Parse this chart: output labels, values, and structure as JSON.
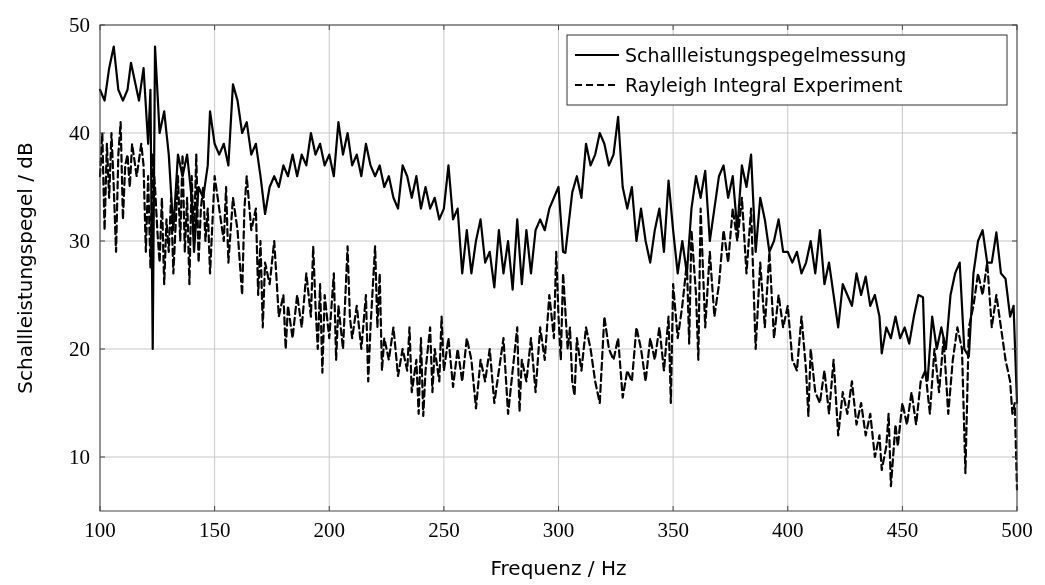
{
  "chart_data": {
    "type": "line",
    "xlabel": "Frequenz / Hz",
    "ylabel": "Schallleistungspegel / dB",
    "xlim": [
      100,
      500
    ],
    "xticks": [
      100,
      150,
      200,
      250,
      300,
      350,
      400,
      450,
      500
    ],
    "ylim": [
      5,
      50
    ],
    "yticks": [
      10,
      20,
      30,
      40,
      50
    ],
    "grid": true,
    "legend": "top right",
    "series": [
      {
        "name": "Schallleistungspegelmessung",
        "color": "#000000",
        "line_style": "solid",
        "x": [
          100,
          102,
          104,
          106,
          108,
          110,
          112,
          113.5,
          115,
          117,
          119,
          121,
          122,
          123,
          124,
          126,
          128,
          130,
          132,
          134,
          136,
          138,
          140,
          141,
          143,
          145,
          147,
          148,
          150,
          152,
          154,
          156,
          158,
          160,
          162,
          164,
          166,
          168,
          170,
          172,
          174,
          176,
          178,
          180,
          182,
          184,
          186,
          188,
          190,
          192,
          194,
          196,
          198,
          200,
          202,
          204,
          206,
          208,
          210,
          212,
          214,
          216,
          218,
          220,
          222,
          224,
          226,
          228,
          230,
          232,
          234,
          236,
          238,
          240,
          242,
          244,
          246,
          248,
          250,
          252,
          254,
          256,
          258,
          260,
          262,
          264,
          266,
          268,
          270,
          272,
          274,
          276,
          278,
          280,
          282,
          284,
          286,
          288,
          290,
          292,
          294,
          296,
          298,
          300,
          302,
          303,
          306,
          308,
          310,
          312,
          314,
          316,
          318,
          320,
          322,
          324,
          326,
          328,
          330,
          332,
          334,
          336,
          338,
          340,
          342,
          344,
          346,
          348,
          350,
          352,
          354,
          356,
          358,
          360,
          362,
          364,
          366,
          368,
          370,
          372,
          374,
          376,
          378,
          380,
          382,
          384,
          386,
          388,
          390,
          392,
          394,
          396,
          398,
          400,
          402,
          404,
          406,
          408,
          410,
          412,
          414,
          416,
          418,
          420,
          422,
          424,
          426,
          428,
          430,
          432,
          434,
          436,
          438,
          440,
          441,
          443,
          445,
          447,
          449,
          451,
          453,
          455,
          457,
          459,
          460,
          461,
          463,
          465,
          467,
          469,
          471,
          473,
          475,
          477,
          479,
          481,
          483,
          485,
          487,
          489,
          491,
          493,
          495,
          497,
          498.5,
          500
        ],
        "values": [
          44,
          43,
          46,
          48,
          44,
          43,
          44,
          46.5,
          45,
          43,
          46,
          39,
          44,
          20,
          48,
          40,
          42,
          38,
          31,
          38,
          36,
          38,
          34,
          29,
          35,
          34,
          37,
          42,
          39,
          38,
          39,
          37,
          44.5,
          43,
          40,
          41,
          38,
          39,
          36,
          32.5,
          35,
          36,
          35,
          37,
          36,
          38,
          36,
          38,
          37,
          40,
          38,
          39,
          37,
          38,
          36,
          41,
          38,
          40,
          37,
          38,
          36,
          39,
          37,
          36,
          37,
          35,
          36,
          34,
          33,
          37,
          36,
          34,
          36,
          33,
          35,
          33,
          34,
          32,
          33,
          37,
          32,
          33,
          27,
          31,
          27,
          30,
          32,
          28,
          29,
          25.7,
          31,
          27,
          30,
          25.5,
          32,
          26,
          31,
          27,
          31,
          32,
          31,
          33,
          34,
          35,
          29,
          28.9,
          34.5,
          36,
          34,
          39,
          37,
          38,
          40,
          39,
          37,
          38,
          41.5,
          35,
          33,
          35,
          30,
          33,
          30,
          28,
          31,
          33,
          29,
          35.6,
          31,
          27,
          30,
          27,
          33,
          36,
          34,
          36.5,
          30,
          33,
          36,
          37,
          34,
          36,
          31,
          37,
          35,
          38,
          29,
          34,
          32,
          29,
          30,
          32,
          29,
          29,
          28,
          29,
          27,
          28,
          30,
          27,
          31,
          26,
          28,
          25,
          22,
          26,
          25,
          24,
          27,
          25,
          26.7,
          24,
          25,
          23,
          19.6,
          22,
          21,
          23,
          21,
          22,
          20.5,
          23,
          25,
          24.8,
          18,
          17.1,
          23,
          20,
          22,
          20,
          25,
          27,
          28,
          20,
          19.3,
          27,
          30,
          31,
          28,
          28,
          30.8,
          27,
          26.5,
          23,
          24,
          15
        ]
      },
      {
        "name": "Rayleigh Integral Experiment",
        "color": "#000000",
        "line_style": "dashed",
        "x": [
          100,
          101,
          102,
          103,
          104,
          105,
          106,
          107,
          108,
          109,
          110,
          111,
          112,
          113,
          114,
          116,
          118,
          119,
          120,
          121,
          122,
          123,
          124,
          125,
          126,
          127,
          128,
          129,
          130,
          131,
          132,
          134,
          135,
          136,
          137,
          138,
          139,
          140,
          141,
          142,
          143,
          144,
          145,
          146,
          147,
          148,
          150,
          152,
          154,
          155,
          156,
          158,
          160,
          162,
          163,
          164,
          166,
          168,
          169,
          170,
          171,
          172,
          174,
          176,
          178,
          180,
          181,
          182,
          184,
          186,
          188,
          190,
          192,
          193,
          194,
          195,
          196,
          197,
          198,
          200,
          202,
          203,
          204,
          206,
          208,
          209,
          210,
          212,
          214,
          216,
          217,
          218,
          220,
          221,
          222,
          223,
          224,
          226,
          228,
          230,
          232,
          234,
          235,
          236,
          238,
          239,
          240,
          241,
          242,
          244,
          245,
          246,
          248,
          249,
          250,
          252,
          254,
          256,
          258,
          260,
          262,
          264,
          266,
          268,
          270,
          272,
          274,
          276,
          278,
          280,
          282,
          283,
          284,
          286,
          288,
          290,
          292,
          294,
          296,
          298,
          299,
          300,
          301,
          302,
          304,
          305,
          306,
          307,
          308,
          310,
          312,
          314,
          316,
          318,
          320,
          322,
          324,
          326,
          328,
          330,
          332,
          334,
          336,
          338,
          340,
          342,
          344,
          346,
          348,
          349,
          350,
          352,
          354,
          356,
          357,
          358,
          360,
          361,
          362,
          364,
          366,
          368,
          370,
          372,
          374,
          376,
          378,
          380,
          382,
          384,
          386,
          388,
          390,
          392,
          394,
          396,
          398,
          400,
          402,
          404,
          406,
          408,
          409,
          410,
          412,
          414,
          416,
          418,
          420,
          422,
          424,
          426,
          428,
          430,
          432,
          434,
          436,
          438,
          440,
          441,
          443,
          444,
          445,
          447,
          448,
          450,
          452,
          454,
          456,
          458,
          460,
          462,
          464,
          466,
          468,
          470,
          472,
          474,
          476,
          477.5,
          479,
          481,
          483,
          485,
          487,
          489,
          491,
          493,
          495,
          497,
          498,
          499,
          500
        ],
        "values": [
          36,
          40,
          31,
          39,
          34,
          40,
          35,
          29,
          38,
          41,
          32,
          37,
          38,
          35,
          39,
          36,
          39,
          37,
          29,
          36,
          27.5,
          38,
          35,
          31,
          28,
          34,
          26,
          32,
          29,
          34,
          27,
          36,
          30,
          38,
          29,
          34,
          26,
          36,
          30,
          38,
          28,
          33,
          35,
          30,
          33,
          27,
          36,
          33,
          30,
          35,
          28,
          34,
          31,
          25,
          33,
          36,
          31,
          33,
          25,
          30,
          22,
          28,
          26,
          30,
          23,
          25,
          20,
          24,
          21,
          25,
          22,
          27,
          23,
          29.5,
          24,
          20,
          26,
          17.8,
          25,
          21,
          27,
          19,
          24,
          20,
          29.5,
          23,
          21,
          24,
          20,
          25,
          17,
          22,
          29.5,
          22,
          27,
          18,
          21,
          19,
          22,
          17.5,
          20,
          18,
          22,
          16,
          19,
          14,
          21,
          13.8,
          18,
          22,
          16,
          20,
          17,
          23,
          18,
          21,
          16.5,
          20,
          17,
          21,
          19,
          14.5,
          19,
          17,
          20,
          15,
          18,
          21,
          14,
          18,
          22,
          14.2,
          19,
          17,
          21,
          16,
          22,
          19,
          25,
          21,
          29,
          23,
          19,
          27,
          20,
          22,
          17,
          15.7,
          21,
          18,
          22,
          20,
          17,
          15,
          23,
          20,
          19,
          21,
          15.5,
          18,
          17,
          22,
          20,
          17,
          21,
          19,
          22,
          18,
          23,
          15,
          26,
          21,
          24,
          28,
          20.5,
          31,
          25,
          19,
          33,
          22,
          29,
          23,
          26,
          31,
          28,
          33,
          30,
          34,
          27,
          33,
          20,
          28,
          22,
          29,
          21,
          25,
          22,
          24,
          19,
          18,
          23,
          18,
          13.8,
          20,
          16,
          15,
          18,
          14,
          19,
          12,
          16,
          14,
          17,
          13,
          15,
          12,
          14,
          10,
          12,
          8.8,
          11,
          14,
          7.3,
          13,
          11,
          15,
          13,
          16,
          13,
          17,
          18,
          14,
          20,
          16,
          21,
          14,
          19,
          22,
          20,
          8.5,
          22,
          24,
          27,
          25,
          28,
          22,
          25,
          22,
          19,
          17,
          14,
          15,
          7
        ]
      }
    ]
  }
}
